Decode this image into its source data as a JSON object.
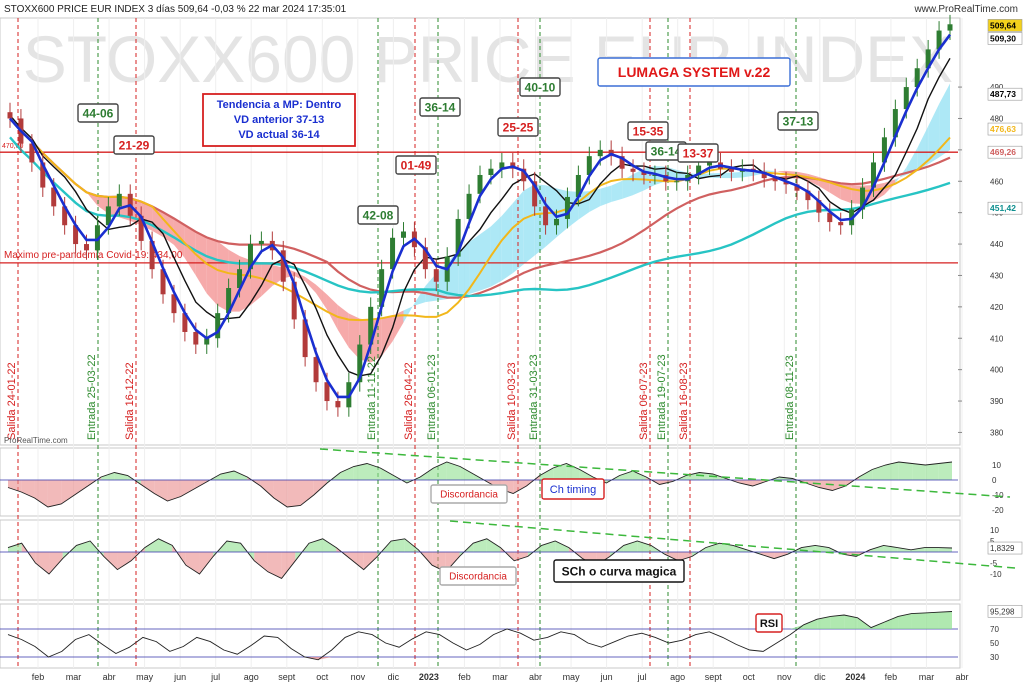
{
  "header": {
    "title": "STOXX600 PRICE EUR INDEX 3 días 509,64 -0,03 % 22 mar 2024 17:35:01",
    "site": "www.ProRealTime.com",
    "watermark": "STOXX600 PRICE EUR INDEX",
    "brand": "ProRealTime.com"
  },
  "colors": {
    "price_up": "#2e7d32",
    "price_down": "#b23b3b",
    "trend_line": "#1a2fd0",
    "ma_black": "#111111",
    "ma_yellow": "#f2b71a",
    "ma_red": "#d06060",
    "ma_cyan": "#27c4c4",
    "cloud_up": "#9fe4f5",
    "cloud_down": "#f49b9b",
    "buy": "#2e8b2e",
    "sell": "#d62020"
  },
  "annotations": {
    "lumaga": "LUMAGA SYSTEM v.22",
    "tendencia": [
      "Tendencia a MP: Dentro",
      "VD anterior 37-13",
      "VD actual 36-14"
    ],
    "boxes": [
      {
        "text": "44-06",
        "color": "green"
      },
      {
        "text": "21-29",
        "color": "red"
      },
      {
        "text": "42-08",
        "color": "green"
      },
      {
        "text": "01-49",
        "color": "red"
      },
      {
        "text": "36-14",
        "color": "green"
      },
      {
        "text": "40-10",
        "color": "green"
      },
      {
        "text": "25-25",
        "color": "red"
      },
      {
        "text": "15-35",
        "color": "red"
      },
      {
        "text": "36-14",
        "color": "green"
      },
      {
        "text": "13-37",
        "color": "red"
      },
      {
        "text": "37-13",
        "color": "green"
      }
    ],
    "resistance_label": "Maximo pre-pandemia Covid-19: 434,00",
    "discordancia": "Discordancia",
    "ch_timing": "Ch timing",
    "sch": "SCh o curva magica",
    "rsi": "RSI"
  },
  "chart_data": {
    "type": "line",
    "title": "STOXX600 PRICE EUR INDEX",
    "x_labels": [
      "feb",
      "mar",
      "abr",
      "may",
      "jun",
      "jul",
      "ago",
      "sept",
      "oct",
      "nov",
      "dic",
      "2023",
      "feb",
      "mar",
      "abr",
      "may",
      "jun",
      "jul",
      "ago",
      "sept",
      "oct",
      "nov",
      "dic",
      "2024",
      "feb",
      "mar",
      "abr"
    ],
    "price_ticks": [
      "490",
      "480",
      "470",
      "460",
      "450",
      "440",
      "430",
      "420",
      "410",
      "400",
      "390",
      "380"
    ],
    "price_tags": [
      {
        "text": "509,64",
        "kind": "last"
      },
      {
        "text": "509,30",
        "kind": "plain"
      },
      {
        "text": "487,73",
        "kind": "black"
      },
      {
        "text": "476,63",
        "kind": "yellow"
      },
      {
        "text": "469,26",
        "kind": "red"
      },
      {
        "text": "451,42",
        "kind": "cyan"
      }
    ],
    "level_left_label": "470,00",
    "horizontal_levels": [
      469.26,
      434.0
    ],
    "signals": [
      {
        "label": "Salida 24-01-22",
        "type": "sell"
      },
      {
        "label": "Entrada 25-03-22",
        "type": "buy"
      },
      {
        "label": "Salida 16-12-22",
        "type": "sell"
      },
      {
        "label": "Entrada 11-11-22",
        "type": "buy"
      },
      {
        "label": "Salida 26-04-22",
        "type": "sell"
      },
      {
        "label": "Entrada 06-01-23",
        "type": "buy"
      },
      {
        "label": "Salida 10-03-23",
        "type": "sell"
      },
      {
        "label": "Entrada 31-03-23",
        "type": "buy"
      },
      {
        "label": "Salida 06-07-23",
        "type": "sell"
      },
      {
        "label": "Entrada 19-07-23",
        "type": "buy"
      },
      {
        "label": "Salida 16-08-23",
        "type": "sell"
      },
      {
        "label": "Entrada 08-11-23",
        "type": "buy"
      }
    ],
    "price_close": [
      480,
      472,
      466,
      458,
      452,
      446,
      440,
      438,
      446,
      452,
      456,
      449,
      441,
      432,
      424,
      418,
      412,
      408,
      410,
      418,
      426,
      432,
      440,
      441,
      438,
      428,
      416,
      404,
      396,
      390,
      388,
      396,
      408,
      420,
      432,
      442,
      444,
      439,
      432,
      428,
      436,
      448,
      456,
      462,
      464,
      466,
      464,
      460,
      452,
      446,
      448,
      455,
      462,
      468,
      470,
      468,
      464,
      463,
      462,
      462,
      460,
      460,
      462,
      465,
      466,
      464,
      463,
      464,
      463,
      461,
      460,
      459,
      457,
      454,
      450,
      447,
      446,
      451,
      458,
      466,
      474,
      483,
      490,
      496,
      502,
      508,
      510
    ],
    "ch_timing": {
      "ticks": [
        "10",
        "0",
        "-10",
        "-20"
      ],
      "values": [
        -5,
        -8,
        -12,
        -18,
        -16,
        -10,
        -4,
        2,
        5,
        3,
        -3,
        -9,
        -14,
        -11,
        -6,
        -1,
        4,
        6,
        2,
        -4,
        -12,
        -18,
        -17,
        -10,
        -2,
        5,
        9,
        11,
        8,
        3,
        -2,
        2,
        8,
        12,
        9,
        4,
        -1,
        -6,
        -9,
        -4,
        3,
        8,
        11,
        7,
        2,
        -2,
        3,
        6,
        2,
        -3,
        -1,
        3,
        5,
        4,
        1,
        -2,
        -4,
        -1,
        2,
        1,
        -2,
        -5,
        -7,
        -4,
        2,
        7,
        10,
        12,
        11,
        10,
        11,
        12
      ]
    },
    "sch": {
      "ticks": [
        "10",
        "5",
        "1,8329",
        "-5",
        "-10"
      ],
      "values": [
        2,
        4,
        -5,
        -10,
        -3,
        3,
        5,
        -2,
        -8,
        -4,
        2,
        6,
        3,
        -6,
        -10,
        -2,
        5,
        4,
        -4,
        -9,
        -12,
        -4,
        4,
        6,
        2,
        -3,
        -8,
        -2,
        5,
        6,
        1,
        -6,
        -9,
        -2,
        4,
        6,
        2,
        -4,
        -2,
        3,
        5,
        2,
        -3,
        -6,
        -2,
        3,
        5,
        3,
        -1,
        -4,
        -2,
        2,
        4,
        3,
        1,
        -1,
        -3,
        -1,
        2,
        3,
        2,
        -1,
        -2,
        1,
        3,
        2,
        1,
        2,
        2,
        1.8
      ]
    },
    "rsi": {
      "ticks": [
        "95,298",
        "70",
        "50",
        "30"
      ],
      "values": [
        62,
        55,
        45,
        30,
        38,
        55,
        62,
        48,
        35,
        44,
        58,
        52,
        38,
        45,
        58,
        52,
        40,
        34,
        46,
        60,
        58,
        42,
        30,
        26,
        40,
        58,
        66,
        62,
        50,
        44,
        56,
        66,
        62,
        50,
        40,
        48,
        62,
        70,
        64,
        54,
        58,
        66,
        62,
        50,
        44,
        52,
        60,
        64,
        58,
        50,
        54,
        62,
        66,
        58,
        48,
        40,
        38,
        50,
        62,
        76,
        84,
        88,
        90,
        86,
        72,
        80,
        88,
        92,
        93,
        94,
        95
      ]
    }
  }
}
